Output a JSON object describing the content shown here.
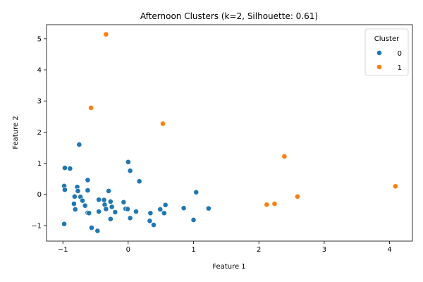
{
  "chart_data": {
    "type": "scatter",
    "title": "Afternoon Clusters (k=2, Silhouette: 0.61)",
    "xlabel": "Feature 1",
    "ylabel": "Feature 2",
    "xlim": [
      -1.25,
      4.35
    ],
    "ylim": [
      -1.5,
      5.45
    ],
    "xticks": [
      -1,
      0,
      1,
      2,
      3,
      4
    ],
    "yticks": [
      -1,
      0,
      1,
      2,
      3,
      4,
      5
    ],
    "grid": false,
    "legend": {
      "title": "Cluster",
      "position": "top-right"
    },
    "series": [
      {
        "name": "0",
        "color": "#1f77b4",
        "points": [
          [
            -0.75,
            1.6
          ],
          [
            -0.97,
            0.85
          ],
          [
            -0.89,
            0.83
          ],
          [
            -0.62,
            0.46
          ],
          [
            -0.98,
            0.27
          ],
          [
            -0.97,
            0.15
          ],
          [
            -0.78,
            0.24
          ],
          [
            -0.77,
            0.11
          ],
          [
            -0.62,
            0.13
          ],
          [
            -0.73,
            -0.08
          ],
          [
            -0.82,
            -0.07
          ],
          [
            -0.7,
            -0.2
          ],
          [
            -0.83,
            -0.3
          ],
          [
            -0.66,
            -0.36
          ],
          [
            -0.81,
            -0.48
          ],
          [
            -0.62,
            -0.59
          ],
          [
            -0.6,
            -0.6
          ],
          [
            -0.98,
            -0.95
          ],
          [
            -0.56,
            -1.07
          ],
          [
            -0.47,
            -1.17
          ],
          [
            -0.3,
            0.11
          ],
          [
            -0.45,
            -0.17
          ],
          [
            -0.37,
            -0.18
          ],
          [
            -0.27,
            -0.23
          ],
          [
            -0.36,
            -0.33
          ],
          [
            -0.25,
            -0.4
          ],
          [
            -0.34,
            -0.47
          ],
          [
            -0.2,
            -0.57
          ],
          [
            -0.45,
            -0.55
          ],
          [
            -0.27,
            -0.79
          ],
          [
            0.0,
            1.04
          ],
          [
            0.03,
            0.76
          ],
          [
            0.17,
            0.42
          ],
          [
            -0.07,
            -0.25
          ],
          [
            -0.04,
            -0.46
          ],
          [
            -0.01,
            -0.47
          ],
          [
            0.12,
            -0.55
          ],
          [
            0.03,
            -0.76
          ],
          [
            0.33,
            -0.85
          ],
          [
            0.39,
            -0.98
          ],
          [
            0.34,
            -0.6
          ],
          [
            0.49,
            -0.48
          ],
          [
            0.57,
            -0.34
          ],
          [
            0.55,
            -0.6
          ],
          [
            0.85,
            -0.44
          ],
          [
            1.04,
            0.07
          ],
          [
            1.23,
            -0.45
          ],
          [
            1.0,
            -0.82
          ]
        ]
      },
      {
        "name": "1",
        "color": "#ff7f0e",
        "points": [
          [
            -0.34,
            5.14
          ],
          [
            -0.57,
            2.78
          ],
          [
            0.53,
            2.27
          ],
          [
            2.39,
            1.22
          ],
          [
            4.09,
            0.26
          ],
          [
            2.59,
            -0.07
          ],
          [
            2.24,
            -0.3
          ],
          [
            2.12,
            -0.33
          ]
        ]
      }
    ]
  }
}
